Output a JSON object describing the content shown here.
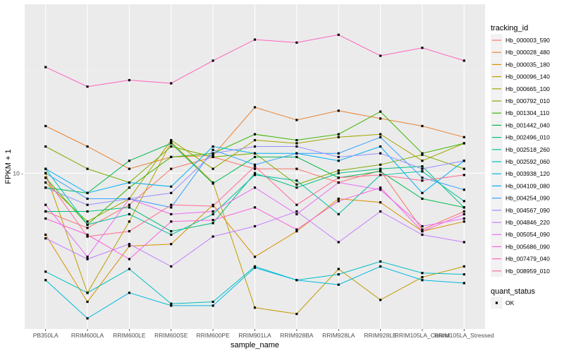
{
  "chart_data": {
    "type": "line",
    "xlabel": "sample_name",
    "ylabel": "FPKM + 1",
    "y_scale": "log10",
    "ylim": [
      1.73,
      67.0
    ],
    "y_ticks": [
      {
        "value": 10,
        "label": "10 -"
      }
    ],
    "grid": true,
    "legend_position": "right",
    "categories": [
      "PB350LA",
      "RRIM600LA",
      "RRIM600LE",
      "RRIM600SE",
      "RRIM600PE",
      "RRIM901LA",
      "RRIM928BA",
      "RRIM928LA",
      "RRIM928LE",
      "RRIM105LA_Control",
      "RRIM105LA_Stressed"
    ],
    "category_labels": [
      "PB350LA",
      "RRIM600LA",
      "RRIM600LE",
      "RRIM600SE",
      "RRIM600PE",
      "RRIM901LA",
      "RRIM928BA",
      "RRIM928LA",
      "RRIM928LE",
      "RRIM105LA_Control",
      "RRIM105LA_Stressed"
    ],
    "series": [
      {
        "name": "Hb_000003_590",
        "color": "#F8766D",
        "values": [
          6.5,
          5.4,
          7.0,
          10.5,
          12.0,
          10.5,
          10.5,
          9.0,
          10.3,
          5.3,
          6.5
        ]
      },
      {
        "name": "Hb_000028_480",
        "color": "#EA8331",
        "values": [
          17.0,
          13.5,
          10.5,
          12.0,
          12.2,
          21.0,
          18.2,
          20.2,
          18.5,
          17.0,
          15.0
        ]
      },
      {
        "name": "Hb_000035_180",
        "color": "#D89000",
        "values": [
          5.0,
          2.35,
          4.4,
          4.5,
          7.0,
          3.9,
          5.2,
          7.5,
          7.2,
          5.2,
          5.8
        ]
      },
      {
        "name": "Hb_000096_140",
        "color": "#C09B00",
        "values": [
          10.0,
          2.6,
          5.8,
          14.2,
          9.0,
          2.2,
          2.05,
          3.4,
          2.4,
          3.1,
          3.5
        ]
      },
      {
        "name": "Hb_000665_100",
        "color": "#A3A500",
        "values": [
          9.0,
          5.8,
          7.5,
          14.5,
          10.5,
          14.5,
          14.0,
          15.0,
          15.5,
          11.5,
          14.0
        ]
      },
      {
        "name": "Hb_000792_010",
        "color": "#7CAE00",
        "values": [
          13.5,
          10.5,
          9.0,
          13.5,
          12.0,
          12.5,
          8.8,
          10.3,
          11.0,
          12.3,
          10.5
        ]
      },
      {
        "name": "Hb_001304_110",
        "color": "#39B600",
        "values": [
          9.5,
          5.6,
          8.5,
          12.0,
          12.5,
          15.5,
          14.5,
          15.5,
          20.0,
          12.5,
          14.0
        ]
      },
      {
        "name": "Hb_001442_040",
        "color": "#00BB4E",
        "values": [
          8.5,
          8.0,
          11.5,
          14.0,
          8.9,
          12.0,
          12.0,
          9.5,
          10.2,
          7.5,
          6.8
        ]
      },
      {
        "name": "Hb_002496_010",
        "color": "#00BF7D",
        "values": [
          6.5,
          6.5,
          6.8,
          5.2,
          5.7,
          10.0,
          8.5,
          10.0,
          10.5,
          10.8,
          6.8
        ]
      },
      {
        "name": "Hb_002518_260",
        "color": "#00C1A3",
        "values": [
          10.5,
          5.6,
          6.3,
          5.0,
          6.3,
          9.8,
          9.2,
          6.3,
          9.8,
          10.2,
          7.3
        ]
      },
      {
        "name": "Hb_002592_060",
        "color": "#00BFC4",
        "values": [
          3.3,
          2.6,
          3.4,
          2.3,
          2.35,
          3.5,
          3.0,
          3.2,
          3.7,
          3.25,
          3.2
        ]
      },
      {
        "name": "Hb_003938_120",
        "color": "#00BAE0",
        "values": [
          3.0,
          1.95,
          2.6,
          2.25,
          2.25,
          3.45,
          3.0,
          2.85,
          3.5,
          3.0,
          2.9
        ]
      },
      {
        "name": "Hb_004109_080",
        "color": "#00B0F6",
        "values": [
          10.5,
          8.0,
          9.0,
          8.6,
          13.5,
          12.5,
          12.5,
          11.5,
          13.5,
          8.0,
          11.5
        ]
      },
      {
        "name": "Hb_004254_090",
        "color": "#35A2FF",
        "values": [
          10.0,
          7.5,
          7.5,
          6.8,
          13.0,
          11.0,
          12.5,
          12.5,
          15.0,
          9.5,
          8.3
        ]
      },
      {
        "name": "Hb_004567_090",
        "color": "#9590FF",
        "values": [
          8.5,
          7.0,
          7.5,
          8.0,
          12.5,
          13.5,
          13.5,
          12.0,
          12.5,
          10.5,
          11.5
        ]
      },
      {
        "name": "Hb_004846_220",
        "color": "#C77CFF",
        "values": [
          4.8,
          3.8,
          4.5,
          3.5,
          4.9,
          5.5,
          6.5,
          4.6,
          6.5,
          5.0,
          4.6
        ]
      },
      {
        "name": "Hb_005054_090",
        "color": "#E76BF3",
        "values": [
          7.0,
          3.9,
          7.5,
          6.3,
          6.5,
          8.5,
          6.3,
          9.0,
          8.3,
          5.5,
          6.0
        ]
      },
      {
        "name": "Hb_005686_090",
        "color": "#FA62DB",
        "values": [
          6.0,
          5.0,
          3.8,
          5.8,
          5.9,
          6.8,
          5.3,
          7.3,
          8.5,
          5.2,
          6.3
        ]
      },
      {
        "name": "Hb_007479_040",
        "color": "#FF62BC",
        "values": [
          33.0,
          26.5,
          28.5,
          27.5,
          35.5,
          45.0,
          43.5,
          47.5,
          37.5,
          41.0,
          35.5
        ]
      },
      {
        "name": "Hb_008959_010",
        "color": "#FF6C91",
        "values": [
          9.5,
          4.9,
          5.2,
          7.0,
          6.9,
          10.8,
          7.0,
          9.5,
          9.8,
          9.2,
          9.8
        ]
      }
    ],
    "legend": {
      "title": "tracking_id",
      "entries": [
        "Hb_000003_590",
        "Hb_000028_480",
        "Hb_000035_180",
        "Hb_000096_140",
        "Hb_000665_100",
        "Hb_000792_010",
        "Hb_001304_110",
        "Hb_001442_040",
        "Hb_002496_010",
        "Hb_002518_260",
        "Hb_002592_060",
        "Hb_003938_120",
        "Hb_004109_080",
        "Hb_004254_090",
        "Hb_004567_090",
        "Hb_004846_220",
        "Hb_005054_090",
        "Hb_005686_090",
        "Hb_007479_040",
        "Hb_008959_010"
      ]
    },
    "shape_legend": {
      "title": "quant_status",
      "entries": [
        {
          "label": "OK",
          "color": "#000000"
        }
      ]
    },
    "colors": {
      "panel_background": "#EBEBEB",
      "grid_major": "#FFFFFF",
      "grid_minor": "#F2F2F2",
      "point": "#000000",
      "legend_key_background": "#F2F2F2"
    }
  }
}
